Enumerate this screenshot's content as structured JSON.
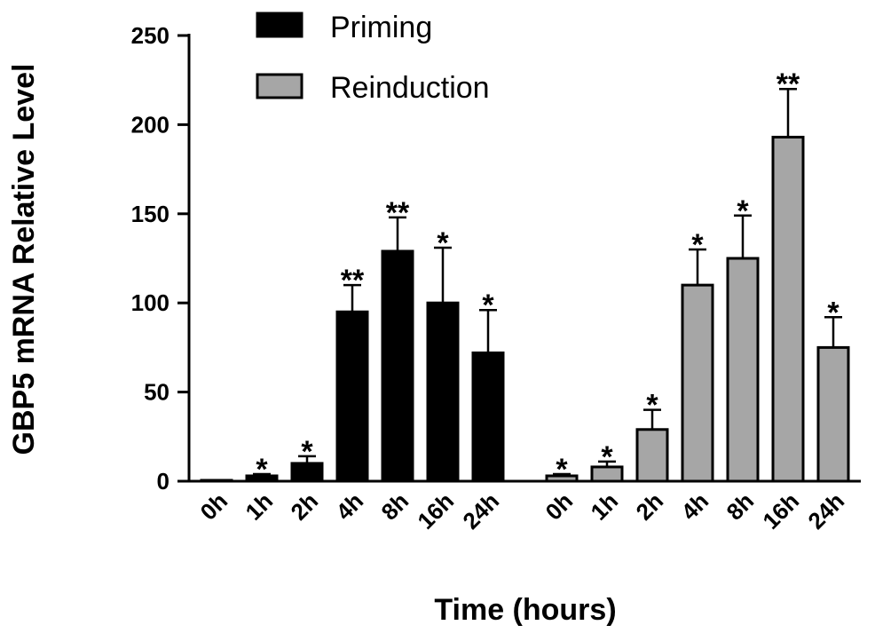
{
  "chart_data": {
    "type": "bar",
    "xlabel": "Time (hours)",
    "ylabel": "GBP5 mRNA Relative Level",
    "ylim": [
      0,
      250
    ],
    "yticks": [
      0,
      50,
      100,
      150,
      200,
      250
    ],
    "legend_position": "top-center",
    "grid": false,
    "groups": [
      {
        "name": "Priming",
        "color": "#000000",
        "categories": [
          "0h",
          "1h",
          "2h",
          "4h",
          "8h",
          "16h",
          "24h"
        ],
        "values": [
          0.5,
          3,
          10,
          95,
          129,
          100,
          72
        ],
        "errors": [
          0,
          1,
          4,
          15,
          19,
          31,
          24
        ],
        "significance": [
          "",
          "*",
          "*",
          "**",
          "**",
          "*",
          "*"
        ]
      },
      {
        "name": "Reinduction",
        "color": "#a6a6a6",
        "categories": [
          "0h",
          "1h",
          "2h",
          "4h",
          "8h",
          "16h",
          "24h"
        ],
        "values": [
          3,
          8,
          29,
          110,
          125,
          193,
          75
        ],
        "errors": [
          1,
          3,
          11,
          20,
          24,
          27,
          17
        ],
        "significance": [
          "*",
          "*",
          "*",
          "*",
          "*",
          "**",
          "*"
        ]
      }
    ]
  }
}
